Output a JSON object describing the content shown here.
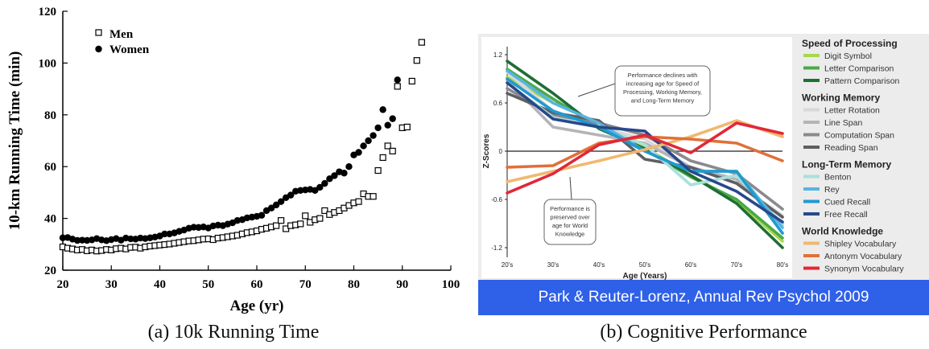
{
  "figure": {
    "caption_a": "(a) 10k Running Time",
    "caption_b": "(b) Cognitive Performance"
  },
  "chart_data": [
    {
      "type": "scatter",
      "xlabel": "Age (yr)",
      "ylabel": "10-km Running Time (min)",
      "xlim": [
        20,
        100
      ],
      "ylim": [
        20,
        120
      ],
      "xticks": [
        "20",
        "30",
        "40",
        "50",
        "60",
        "70",
        "80",
        "90",
        "100"
      ],
      "yticks": [
        "20",
        "40",
        "60",
        "80",
        "100",
        "120"
      ],
      "legend_position": "top-left",
      "series": [
        {
          "name": "Men",
          "marker": "open-square",
          "points": [
            [
              20,
              29
            ],
            [
              21,
              28.5
            ],
            [
              22,
              28.2
            ],
            [
              23,
              27.8
            ],
            [
              24,
              28
            ],
            [
              25,
              27.5
            ],
            [
              26,
              27.8
            ],
            [
              27,
              27.4
            ],
            [
              28,
              27.6
            ],
            [
              29,
              28
            ],
            [
              30,
              27.8
            ],
            [
              31,
              28.3
            ],
            [
              32,
              28.5
            ],
            [
              33,
              28.2
            ],
            [
              34,
              28.8
            ],
            [
              35,
              28.9
            ],
            [
              36,
              28.5
            ],
            [
              37,
              29
            ],
            [
              38,
              29.3
            ],
            [
              39,
              29.5
            ],
            [
              40,
              29.7
            ],
            [
              41,
              29.9
            ],
            [
              42,
              30.1
            ],
            [
              43,
              30.4
            ],
            [
              44,
              30.7
            ],
            [
              45,
              31
            ],
            [
              46,
              31.3
            ],
            [
              47,
              31.4
            ],
            [
              48,
              31.7
            ],
            [
              49,
              32
            ],
            [
              50,
              32.1
            ],
            [
              51,
              31.8
            ],
            [
              52,
              32.4
            ],
            [
              53,
              32.6
            ],
            [
              54,
              32.9
            ],
            [
              55,
              33.2
            ],
            [
              56,
              33.5
            ],
            [
              57,
              34
            ],
            [
              58,
              34.5
            ],
            [
              59,
              34.8
            ],
            [
              60,
              35.2
            ],
            [
              61,
              35.8
            ],
            [
              62,
              36.2
            ],
            [
              63,
              36.7
            ],
            [
              64,
              37.2
            ],
            [
              65,
              39.2
            ],
            [
              66,
              36
            ],
            [
              67,
              37.2
            ],
            [
              68,
              37.5
            ],
            [
              69,
              37.9
            ],
            [
              70,
              41
            ],
            [
              71,
              38.5
            ],
            [
              72,
              39.5
            ],
            [
              73,
              40
            ],
            [
              74,
              43
            ],
            [
              75,
              41.5
            ],
            [
              76,
              42.3
            ],
            [
              77,
              43
            ],
            [
              78,
              44
            ],
            [
              79,
              45
            ],
            [
              80,
              46
            ],
            [
              81,
              46.5
            ],
            [
              82,
              49.5
            ],
            [
              83,
              48.5
            ],
            [
              84,
              48.5
            ],
            [
              85,
              58.5
            ],
            [
              86,
              63.5
            ],
            [
              87,
              68
            ],
            [
              88,
              66
            ],
            [
              89,
              91
            ],
            [
              90,
              75
            ],
            [
              91,
              75.3
            ],
            [
              92,
              93
            ],
            [
              93,
              101
            ],
            [
              94,
              108
            ]
          ]
        },
        {
          "name": "Women",
          "marker": "filled-circle",
          "points": [
            [
              20,
              32.5
            ],
            [
              21,
              32.6
            ],
            [
              22,
              32
            ],
            [
              23,
              31.5
            ],
            [
              24,
              31.6
            ],
            [
              25,
              31.5
            ],
            [
              26,
              31.7
            ],
            [
              27,
              32.2
            ],
            [
              28,
              31.7
            ],
            [
              29,
              31.4
            ],
            [
              30,
              31.8
            ],
            [
              31,
              32.2
            ],
            [
              32,
              31.6
            ],
            [
              33,
              32.4
            ],
            [
              34,
              32.1
            ],
            [
              35,
              32
            ],
            [
              36,
              32.4
            ],
            [
              37,
              32.2
            ],
            [
              38,
              32.5
            ],
            [
              39,
              32.8
            ],
            [
              40,
              33.2
            ],
            [
              41,
              34
            ],
            [
              42,
              34
            ],
            [
              43,
              34.4
            ],
            [
              44,
              35
            ],
            [
              45,
              35.5
            ],
            [
              46,
              36.2
            ],
            [
              47,
              36.6
            ],
            [
              48,
              36.5
            ],
            [
              49,
              36.7
            ],
            [
              50,
              36.3
            ],
            [
              51,
              37.1
            ],
            [
              52,
              37.4
            ],
            [
              53,
              37.2
            ],
            [
              54,
              37.8
            ],
            [
              55,
              38.3
            ],
            [
              56,
              39.2
            ],
            [
              57,
              39.5
            ],
            [
              58,
              40.2
            ],
            [
              59,
              40.5
            ],
            [
              60,
              40.8
            ],
            [
              61,
              41.2
            ],
            [
              62,
              43
            ],
            [
              63,
              44
            ],
            [
              64,
              45.2
            ],
            [
              65,
              46.5
            ],
            [
              66,
              48
            ],
            [
              67,
              49
            ],
            [
              68,
              50.5
            ],
            [
              69,
              50.8
            ],
            [
              70,
              51
            ],
            [
              71,
              51.2
            ],
            [
              72,
              50.8
            ],
            [
              73,
              52
            ],
            [
              74,
              53.5
            ],
            [
              75,
              55.3
            ],
            [
              76,
              56.5
            ],
            [
              77,
              58
            ],
            [
              78,
              57.5
            ],
            [
              79,
              60
            ],
            [
              80,
              64.5
            ],
            [
              81,
              65.5
            ],
            [
              82,
              68
            ],
            [
              83,
              70
            ],
            [
              84,
              72
            ],
            [
              85,
              75
            ],
            [
              86,
              82
            ],
            [
              87,
              76
            ],
            [
              88,
              78.5
            ],
            [
              89,
              93.5
            ]
          ]
        }
      ]
    },
    {
      "type": "line",
      "xlabel": "Age (Years)",
      "ylabel": "Z-Scores",
      "categories": [
        "20's",
        "30's",
        "40's",
        "50's",
        "60's",
        "70's",
        "80's"
      ],
      "ylim": [
        -1.3,
        1.3
      ],
      "yticks": [
        "1.2",
        "0.6",
        "0",
        "-0.6",
        "-1.2"
      ],
      "grid": false,
      "legend_position": "right",
      "annotation_top": "Performance declines with increasing age for Speed of Processing, Working Memory, and Long-Term Memory",
      "annotation_bottom": "Performance is preserved over age for World Knowledge",
      "source": "Park & Reuter-Lorenz, Annual Rev Psychol 2009",
      "banner_color": "#2f60e8",
      "groups": [
        {
          "name": "Speed of Processing",
          "series": [
            {
              "name": "Digit Symbol",
              "color": "#a8d84a",
              "values": [
                0.92,
                0.6,
                0.35,
                0.05,
                -0.3,
                -0.62,
                -1.12
              ]
            },
            {
              "name": "Letter Comparison",
              "color": "#4aaa48",
              "values": [
                1.02,
                0.65,
                0.3,
                0.02,
                -0.32,
                -0.6,
                -1.08
              ]
            },
            {
              "name": "Pattern Comparison",
              "color": "#1f6e34",
              "values": [
                1.12,
                0.72,
                0.28,
                0.03,
                -0.3,
                -0.65,
                -1.2
              ]
            }
          ]
        },
        {
          "name": "Working Memory",
          "series": [
            {
              "name": "Letter Rotation",
              "color": "#d8d8dc",
              "values": [
                0.98,
                0.5,
                0.3,
                0.15,
                -0.2,
                -0.4,
                -0.8
              ]
            },
            {
              "name": "Line Span",
              "color": "#b4b4b8",
              "values": [
                0.88,
                0.3,
                0.2,
                0.1,
                -0.2,
                -0.35,
                -0.9
              ]
            },
            {
              "name": "Computation Span",
              "color": "#8a8a8e",
              "values": [
                0.78,
                0.45,
                0.35,
                0.2,
                -0.12,
                -0.28,
                -0.72
              ]
            },
            {
              "name": "Reading Span",
              "color": "#5e5e64",
              "values": [
                0.72,
                0.48,
                0.38,
                -0.1,
                -0.2,
                -0.4,
                -0.82
              ]
            }
          ]
        },
        {
          "name": "Long-Term Memory",
          "series": [
            {
              "name": "Benton",
              "color": "#a8e0dc",
              "values": [
                0.85,
                0.42,
                0.3,
                0.08,
                -0.42,
                -0.3,
                -0.92
              ]
            },
            {
              "name": "Rey",
              "color": "#58b4e0",
              "values": [
                1.0,
                0.6,
                0.35,
                0.0,
                -0.25,
                -0.25,
                -0.95
              ]
            },
            {
              "name": "Cued Recall",
              "color": "#1f9ad0",
              "values": [
                0.9,
                0.5,
                0.3,
                0.0,
                -0.25,
                -0.25,
                -1.02
              ]
            },
            {
              "name": "Free Recall",
              "color": "#28488a",
              "values": [
                0.85,
                0.4,
                0.3,
                0.25,
                -0.25,
                -0.5,
                -0.88
              ]
            }
          ]
        },
        {
          "name": "World Knowledge",
          "series": [
            {
              "name": "Shipley Vocabulary",
              "color": "#f0b870",
              "values": [
                -0.38,
                -0.25,
                -0.12,
                0.02,
                0.18,
                0.38,
                0.18
              ]
            },
            {
              "name": "Antonym Vocabulary",
              "color": "#e07038",
              "values": [
                -0.2,
                -0.18,
                0.1,
                0.18,
                0.15,
                0.1,
                -0.12
              ]
            },
            {
              "name": "Synonym Vocabulary",
              "color": "#e02838",
              "values": [
                -0.52,
                -0.28,
                0.08,
                0.2,
                -0.02,
                0.35,
                0.22
              ]
            }
          ]
        }
      ]
    }
  ]
}
